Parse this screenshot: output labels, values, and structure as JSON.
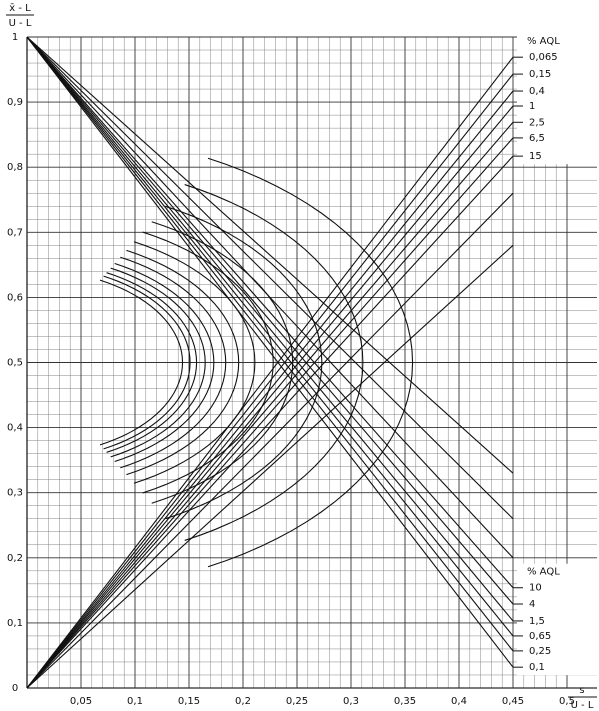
{
  "chart_data": {
    "type": "line",
    "y_label": {
      "numerator": "x̄ - L",
      "denominator": "U - L"
    },
    "x_label": {
      "numerator": "s",
      "denominator": "U - L"
    },
    "xlim": [
      0,
      0.5
    ],
    "ylim": [
      0,
      1
    ],
    "xticks": [
      {
        "value": 0.05,
        "label": "0,05"
      },
      {
        "value": 0.1,
        "label": "0,1"
      },
      {
        "value": 0.15,
        "label": "0,15"
      },
      {
        "value": 0.2,
        "label": "0,2"
      },
      {
        "value": 0.25,
        "label": "0,25"
      },
      {
        "value": 0.3,
        "label": "0,3"
      },
      {
        "value": 0.35,
        "label": "0,35"
      },
      {
        "value": 0.4,
        "label": "0,4"
      },
      {
        "value": 0.45,
        "label": "0,45"
      },
      {
        "value": 0.5,
        "label": "0,5"
      }
    ],
    "yticks": [
      0,
      {
        "value": 0.1,
        "label": "0,1"
      },
      {
        "value": 0.2,
        "label": "0,2"
      },
      {
        "value": 0.3,
        "label": "0,3"
      },
      {
        "value": 0.4,
        "label": "0,4"
      },
      {
        "value": 0.5,
        "label": "0,5"
      },
      {
        "value": 0.6,
        "label": "0,6"
      },
      {
        "value": 0.7,
        "label": "0,7"
      },
      {
        "value": 0.8,
        "label": "0,8"
      },
      {
        "value": 0.9,
        "label": "0,9"
      },
      1
    ],
    "grid": true,
    "color": "#111111",
    "series": [
      {
        "x": [
          0,
          0.45
        ],
        "values": [
          0,
          0.969
        ]
      },
      {
        "x": [
          0,
          0.45
        ],
        "values": [
          0,
          0.943
        ]
      },
      {
        "x": [
          0,
          0.45
        ],
        "values": [
          0,
          0.917
        ]
      },
      {
        "x": [
          0,
          0.45
        ],
        "values": [
          0,
          0.894
        ]
      },
      {
        "x": [
          0,
          0.45
        ],
        "values": [
          0,
          0.869
        ]
      },
      {
        "x": [
          0,
          0.45
        ],
        "values": [
          0,
          0.845
        ]
      },
      {
        "x": [
          0,
          0.45
        ],
        "values": [
          0,
          0.817
        ]
      },
      {
        "x": [
          0,
          0.45
        ],
        "values": [
          0,
          0.76
        ]
      },
      {
        "x": [
          0,
          0.45
        ],
        "values": [
          0,
          0.68
        ]
      },
      {
        "x": [
          0,
          0.45
        ],
        "values": [
          1,
          0.032
        ]
      },
      {
        "x": [
          0,
          0.45
        ],
        "values": [
          1,
          0.057
        ]
      },
      {
        "x": [
          0,
          0.45
        ],
        "values": [
          1,
          0.08
        ]
      },
      {
        "x": [
          0,
          0.45
        ],
        "values": [
          1,
          0.103
        ]
      },
      {
        "x": [
          0,
          0.45
        ],
        "values": [
          1,
          0.129
        ]
      },
      {
        "x": [
          0,
          0.45
        ],
        "values": [
          1,
          0.154
        ]
      },
      {
        "x": [
          0,
          0.45
        ],
        "values": [
          1,
          0.2
        ]
      },
      {
        "x": [
          0,
          0.45
        ],
        "values": [
          1,
          0.26
        ]
      },
      {
        "x": [
          0,
          0.45
        ],
        "values": [
          1,
          0.33
        ]
      }
    ],
    "arcs": {
      "vertex_x": [
        0.144,
        0.151,
        0.157,
        0.165,
        0.173,
        0.184,
        0.196,
        0.211,
        0.228,
        0.246,
        0.273,
        0.311,
        0.357
      ]
    },
    "aql_top": {
      "title": "% AQL",
      "labels": [
        "0,065",
        "0,15",
        "0,4",
        "1",
        "2,5",
        "6,5",
        "15"
      ],
      "y": [
        0.969,
        0.943,
        0.917,
        0.894,
        0.869,
        0.845,
        0.817
      ]
    },
    "aql_bottom": {
      "title": "% AQL",
      "labels": [
        "10",
        "4",
        "1,5",
        "0,65",
        "0,25",
        "0,1"
      ],
      "y": [
        0.154,
        0.129,
        0.103,
        0.08,
        0.057,
        0.032
      ]
    }
  }
}
